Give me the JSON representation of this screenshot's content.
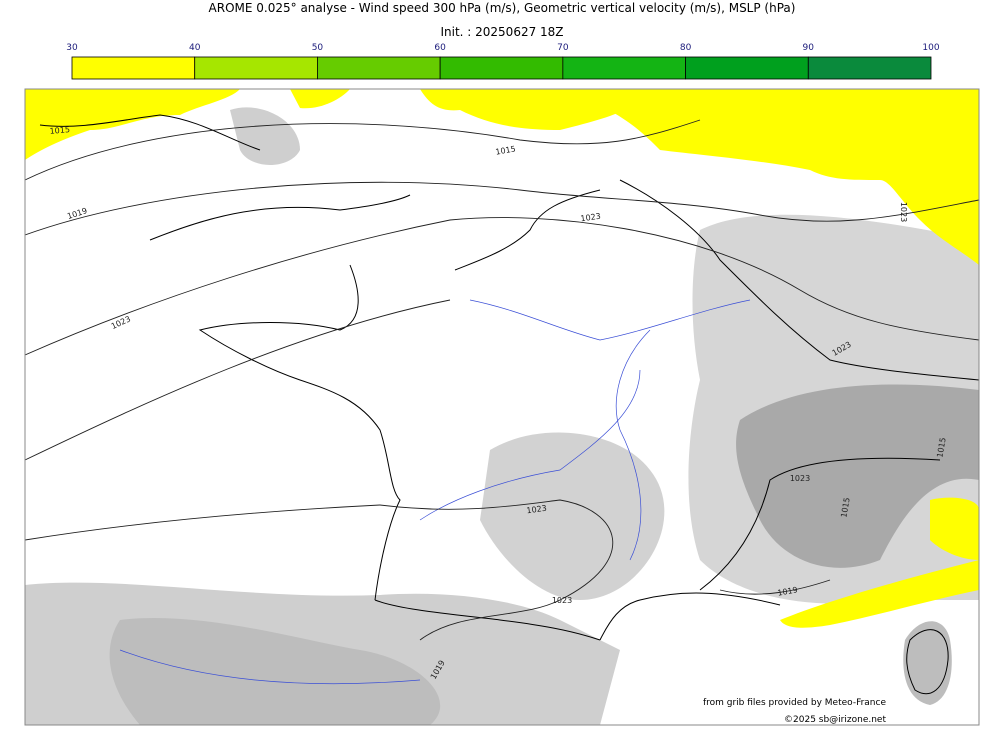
{
  "header": {
    "title": "AROME 0.025° analyse - Wind speed 300 hPa (m/s), Geometric vertical velocity (m/s), MSLP (hPa)",
    "init": "Init. : 20250627 18Z"
  },
  "colorbar": {
    "ticks": [
      30,
      40,
      50,
      60,
      70,
      80,
      90,
      100
    ],
    "colors": [
      "#ffff00",
      "#a6e600",
      "#66cc00",
      "#33bb00",
      "#14b414",
      "#00a01e",
      "#0a8a3c",
      "#087850"
    ]
  },
  "map": {
    "isobar_labels": [
      "1015",
      "1015",
      "1019",
      "1023",
      "1023",
      "1023",
      "1023",
      "1023",
      "1023",
      "1019",
      "1019",
      "1023",
      "1015",
      "1015"
    ]
  },
  "credits": {
    "source": "from grib files provided by Meteo-France",
    "copyright": "©2025 sb@irizone.net"
  }
}
